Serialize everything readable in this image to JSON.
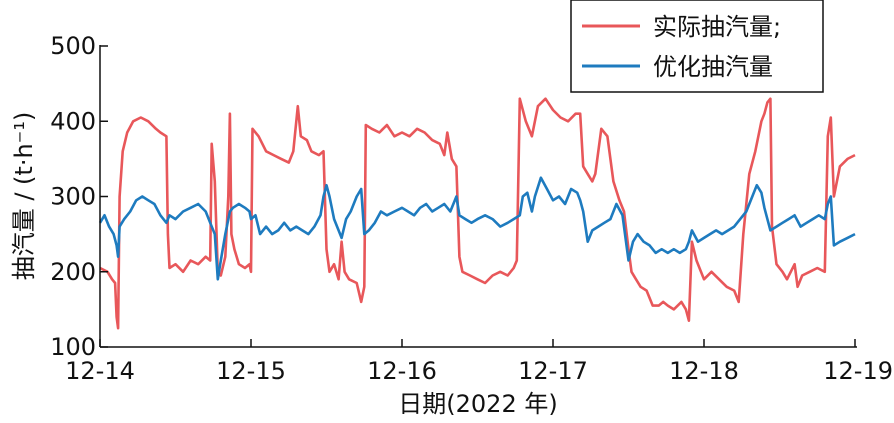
{
  "chart_data": {
    "type": "line",
    "xlabel": "日期(2022 年)",
    "ylabel": "抽汽量 / (t·h⁻¹)",
    "x_ticks": [
      "12-14",
      "12-15",
      "12-16",
      "12-17",
      "12-18",
      "12-19"
    ],
    "y_ticks": [
      "100",
      "200",
      "300",
      "400",
      "500"
    ],
    "ylim": [
      100,
      500
    ],
    "x_unit": "days since 12-14",
    "xlim": [
      0,
      5
    ],
    "legend_position": "top-right",
    "series": [
      {
        "name": "实际抽汽量;",
        "color": "#e8575a",
        "points": [
          [
            0.0,
            205
          ],
          [
            0.05,
            200
          ],
          [
            0.08,
            190
          ],
          [
            0.1,
            185
          ],
          [
            0.11,
            140
          ],
          [
            0.12,
            125
          ],
          [
            0.13,
            300
          ],
          [
            0.15,
            360
          ],
          [
            0.18,
            385
          ],
          [
            0.22,
            400
          ],
          [
            0.27,
            405
          ],
          [
            0.32,
            400
          ],
          [
            0.37,
            390
          ],
          [
            0.4,
            385
          ],
          [
            0.44,
            380
          ],
          [
            0.45,
            250
          ],
          [
            0.46,
            205
          ],
          [
            0.5,
            210
          ],
          [
            0.55,
            200
          ],
          [
            0.6,
            215
          ],
          [
            0.65,
            210
          ],
          [
            0.7,
            220
          ],
          [
            0.73,
            215
          ],
          [
            0.74,
            370
          ],
          [
            0.76,
            320
          ],
          [
            0.78,
            200
          ],
          [
            0.8,
            195
          ],
          [
            0.83,
            220
          ],
          [
            0.85,
            300
          ],
          [
            0.86,
            410
          ],
          [
            0.87,
            250
          ],
          [
            0.89,
            230
          ],
          [
            0.92,
            210
          ],
          [
            0.96,
            205
          ],
          [
            0.99,
            210
          ],
          [
            1.0,
            200
          ],
          [
            1.01,
            390
          ],
          [
            1.05,
            380
          ],
          [
            1.1,
            360
          ],
          [
            1.15,
            355
          ],
          [
            1.2,
            350
          ],
          [
            1.25,
            345
          ],
          [
            1.28,
            360
          ],
          [
            1.31,
            420
          ],
          [
            1.33,
            380
          ],
          [
            1.37,
            375
          ],
          [
            1.4,
            360
          ],
          [
            1.45,
            355
          ],
          [
            1.48,
            360
          ],
          [
            1.5,
            230
          ],
          [
            1.52,
            200
          ],
          [
            1.55,
            210
          ],
          [
            1.58,
            190
          ],
          [
            1.6,
            240
          ],
          [
            1.62,
            200
          ],
          [
            1.65,
            190
          ],
          [
            1.7,
            185
          ],
          [
            1.73,
            160
          ],
          [
            1.75,
            180
          ],
          [
            1.76,
            395
          ],
          [
            1.8,
            390
          ],
          [
            1.85,
            385
          ],
          [
            1.9,
            395
          ],
          [
            1.95,
            380
          ],
          [
            2.0,
            385
          ],
          [
            2.05,
            380
          ],
          [
            2.1,
            390
          ],
          [
            2.15,
            385
          ],
          [
            2.2,
            375
          ],
          [
            2.25,
            370
          ],
          [
            2.28,
            355
          ],
          [
            2.3,
            385
          ],
          [
            2.33,
            350
          ],
          [
            2.36,
            340
          ],
          [
            2.38,
            220
          ],
          [
            2.4,
            200
          ],
          [
            2.45,
            195
          ],
          [
            2.5,
            190
          ],
          [
            2.55,
            185
          ],
          [
            2.6,
            195
          ],
          [
            2.65,
            200
          ],
          [
            2.7,
            195
          ],
          [
            2.74,
            205
          ],
          [
            2.76,
            215
          ],
          [
            2.78,
            430
          ],
          [
            2.82,
            400
          ],
          [
            2.86,
            380
          ],
          [
            2.9,
            420
          ],
          [
            2.95,
            430
          ],
          [
            3.0,
            415
          ],
          [
            3.05,
            405
          ],
          [
            3.1,
            400
          ],
          [
            3.15,
            410
          ],
          [
            3.18,
            410
          ],
          [
            3.2,
            340
          ],
          [
            3.23,
            330
          ],
          [
            3.26,
            320
          ],
          [
            3.28,
            330
          ],
          [
            3.32,
            390
          ],
          [
            3.36,
            380
          ],
          [
            3.4,
            320
          ],
          [
            3.44,
            295
          ],
          [
            3.47,
            280
          ],
          [
            3.5,
            230
          ],
          [
            3.52,
            200
          ],
          [
            3.55,
            190
          ],
          [
            3.58,
            180
          ],
          [
            3.62,
            175
          ],
          [
            3.66,
            155
          ],
          [
            3.7,
            155
          ],
          [
            3.73,
            160
          ],
          [
            3.76,
            155
          ],
          [
            3.8,
            150
          ],
          [
            3.85,
            160
          ],
          [
            3.88,
            150
          ],
          [
            3.9,
            135
          ],
          [
            3.92,
            240
          ],
          [
            3.95,
            215
          ],
          [
            4.0,
            190
          ],
          [
            4.05,
            200
          ],
          [
            4.1,
            190
          ],
          [
            4.15,
            180
          ],
          [
            4.2,
            175
          ],
          [
            4.23,
            160
          ],
          [
            4.26,
            250
          ],
          [
            4.3,
            330
          ],
          [
            4.34,
            360
          ],
          [
            4.38,
            400
          ],
          [
            4.4,
            410
          ],
          [
            4.42,
            425
          ],
          [
            4.44,
            430
          ],
          [
            4.45,
            260
          ],
          [
            4.48,
            210
          ],
          [
            4.52,
            200
          ],
          [
            4.55,
            190
          ],
          [
            4.6,
            210
          ],
          [
            4.62,
            180
          ],
          [
            4.65,
            195
          ],
          [
            4.7,
            200
          ],
          [
            4.75,
            205
          ],
          [
            4.8,
            200
          ],
          [
            4.82,
            380
          ],
          [
            4.84,
            405
          ],
          [
            4.86,
            300
          ],
          [
            4.9,
            340
          ],
          [
            4.95,
            350
          ],
          [
            5.0,
            355
          ]
        ]
      },
      {
        "name": "优化抽汽量",
        "color": "#1e7bbf",
        "points": [
          [
            0.0,
            265
          ],
          [
            0.03,
            275
          ],
          [
            0.06,
            260
          ],
          [
            0.09,
            250
          ],
          [
            0.11,
            235
          ],
          [
            0.12,
            220
          ],
          [
            0.13,
            260
          ],
          [
            0.16,
            270
          ],
          [
            0.2,
            280
          ],
          [
            0.24,
            295
          ],
          [
            0.28,
            300
          ],
          [
            0.32,
            295
          ],
          [
            0.36,
            290
          ],
          [
            0.4,
            275
          ],
          [
            0.44,
            265
          ],
          [
            0.46,
            275
          ],
          [
            0.5,
            270
          ],
          [
            0.55,
            280
          ],
          [
            0.6,
            285
          ],
          [
            0.65,
            290
          ],
          [
            0.7,
            280
          ],
          [
            0.73,
            265
          ],
          [
            0.76,
            250
          ],
          [
            0.78,
            190
          ],
          [
            0.8,
            215
          ],
          [
            0.83,
            250
          ],
          [
            0.86,
            280
          ],
          [
            0.88,
            285
          ],
          [
            0.92,
            290
          ],
          [
            0.96,
            285
          ],
          [
            0.99,
            280
          ],
          [
            1.0,
            270
          ],
          [
            1.03,
            275
          ],
          [
            1.06,
            250
          ],
          [
            1.1,
            260
          ],
          [
            1.14,
            250
          ],
          [
            1.18,
            255
          ],
          [
            1.22,
            265
          ],
          [
            1.26,
            255
          ],
          [
            1.3,
            260
          ],
          [
            1.34,
            255
          ],
          [
            1.38,
            250
          ],
          [
            1.42,
            260
          ],
          [
            1.46,
            275
          ],
          [
            1.48,
            300
          ],
          [
            1.5,
            315
          ],
          [
            1.52,
            300
          ],
          [
            1.55,
            270
          ],
          [
            1.58,
            255
          ],
          [
            1.6,
            245
          ],
          [
            1.63,
            270
          ],
          [
            1.66,
            280
          ],
          [
            1.7,
            300
          ],
          [
            1.73,
            310
          ],
          [
            1.75,
            250
          ],
          [
            1.78,
            255
          ],
          [
            1.82,
            265
          ],
          [
            1.86,
            280
          ],
          [
            1.9,
            275
          ],
          [
            1.95,
            280
          ],
          [
            2.0,
            285
          ],
          [
            2.04,
            280
          ],
          [
            2.08,
            275
          ],
          [
            2.12,
            285
          ],
          [
            2.16,
            290
          ],
          [
            2.2,
            280
          ],
          [
            2.24,
            285
          ],
          [
            2.28,
            290
          ],
          [
            2.32,
            280
          ],
          [
            2.36,
            300
          ],
          [
            2.38,
            275
          ],
          [
            2.42,
            270
          ],
          [
            2.46,
            265
          ],
          [
            2.5,
            270
          ],
          [
            2.55,
            275
          ],
          [
            2.6,
            270
          ],
          [
            2.65,
            260
          ],
          [
            2.7,
            265
          ],
          [
            2.74,
            270
          ],
          [
            2.78,
            275
          ],
          [
            2.8,
            300
          ],
          [
            2.83,
            305
          ],
          [
            2.86,
            280
          ],
          [
            2.88,
            300
          ],
          [
            2.92,
            325
          ],
          [
            2.96,
            310
          ],
          [
            3.0,
            295
          ],
          [
            3.04,
            300
          ],
          [
            3.08,
            290
          ],
          [
            3.12,
            310
          ],
          [
            3.16,
            305
          ],
          [
            3.18,
            295
          ],
          [
            3.2,
            280
          ],
          [
            3.23,
            240
          ],
          [
            3.26,
            255
          ],
          [
            3.3,
            260
          ],
          [
            3.34,
            265
          ],
          [
            3.38,
            270
          ],
          [
            3.42,
            290
          ],
          [
            3.46,
            275
          ],
          [
            3.5,
            215
          ],
          [
            3.53,
            240
          ],
          [
            3.56,
            250
          ],
          [
            3.6,
            240
          ],
          [
            3.64,
            235
          ],
          [
            3.68,
            225
          ],
          [
            3.72,
            230
          ],
          [
            3.76,
            225
          ],
          [
            3.8,
            230
          ],
          [
            3.84,
            225
          ],
          [
            3.88,
            230
          ],
          [
            3.9,
            240
          ],
          [
            3.92,
            255
          ],
          [
            3.96,
            240
          ],
          [
            4.0,
            245
          ],
          [
            4.04,
            250
          ],
          [
            4.08,
            255
          ],
          [
            4.12,
            250
          ],
          [
            4.16,
            255
          ],
          [
            4.2,
            260
          ],
          [
            4.24,
            270
          ],
          [
            4.28,
            280
          ],
          [
            4.32,
            300
          ],
          [
            4.35,
            315
          ],
          [
            4.38,
            305
          ],
          [
            4.4,
            285
          ],
          [
            4.44,
            255
          ],
          [
            4.48,
            260
          ],
          [
            4.52,
            265
          ],
          [
            4.56,
            270
          ],
          [
            4.6,
            275
          ],
          [
            4.64,
            260
          ],
          [
            4.68,
            265
          ],
          [
            4.72,
            270
          ],
          [
            4.76,
            275
          ],
          [
            4.8,
            270
          ],
          [
            4.82,
            290
          ],
          [
            4.84,
            300
          ],
          [
            4.86,
            235
          ],
          [
            4.9,
            240
          ],
          [
            4.95,
            245
          ],
          [
            5.0,
            250
          ]
        ]
      }
    ]
  }
}
